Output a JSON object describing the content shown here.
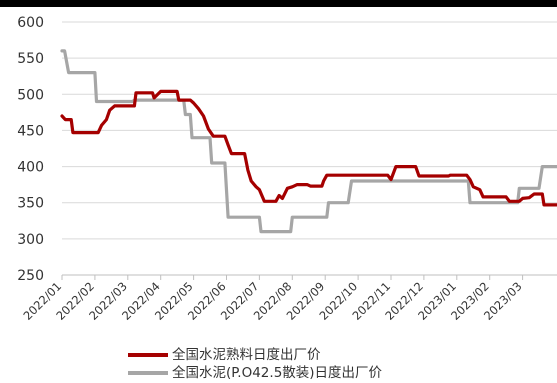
{
  "chart_data": {
    "type": "line",
    "ylim": [
      250,
      600
    ],
    "yticks": [
      250,
      300,
      350,
      400,
      450,
      500,
      550,
      600
    ],
    "x_tick_labels": [
      "2022/01",
      "2022/02",
      "2022/03",
      "2022/04",
      "2022/05",
      "2022/06",
      "2022/07",
      "2022/08",
      "2022/09",
      "2022/10",
      "2022/11",
      "2022/12",
      "2023/01",
      "2023/02",
      "2023/03"
    ],
    "series": [
      {
        "name": "全国水泥熟料日度出厂价",
        "color": "#a50000",
        "points": [
          [
            0.0,
            470
          ],
          [
            0.1,
            465
          ],
          [
            0.28,
            465
          ],
          [
            0.33,
            447
          ],
          [
            1.1,
            447
          ],
          [
            1.2,
            457
          ],
          [
            1.35,
            465
          ],
          [
            1.45,
            478
          ],
          [
            1.6,
            484
          ],
          [
            2.2,
            484
          ],
          [
            2.25,
            502
          ],
          [
            2.75,
            502
          ],
          [
            2.8,
            495
          ],
          [
            3.0,
            504
          ],
          [
            3.5,
            504
          ],
          [
            3.55,
            492
          ],
          [
            3.9,
            492
          ],
          [
            4.0,
            488
          ],
          [
            4.15,
            480
          ],
          [
            4.3,
            470
          ],
          [
            4.45,
            452
          ],
          [
            4.6,
            442
          ],
          [
            4.95,
            442
          ],
          [
            5.05,
            430
          ],
          [
            5.15,
            418
          ],
          [
            5.55,
            418
          ],
          [
            5.65,
            395
          ],
          [
            5.75,
            380
          ],
          [
            5.9,
            372
          ],
          [
            6.0,
            368
          ],
          [
            6.15,
            352
          ],
          [
            6.5,
            352
          ],
          [
            6.6,
            360
          ],
          [
            6.7,
            356
          ],
          [
            6.85,
            370
          ],
          [
            7.0,
            372
          ],
          [
            7.15,
            375
          ],
          [
            7.45,
            375
          ],
          [
            7.55,
            373
          ],
          [
            7.9,
            373
          ],
          [
            7.95,
            380
          ],
          [
            8.05,
            388
          ],
          [
            9.9,
            388
          ],
          [
            10.0,
            382
          ],
          [
            10.15,
            400
          ],
          [
            10.75,
            400
          ],
          [
            10.85,
            387
          ],
          [
            11.75,
            387
          ],
          [
            11.8,
            388
          ],
          [
            12.3,
            388
          ],
          [
            12.4,
            382
          ],
          [
            12.5,
            372
          ],
          [
            12.7,
            368
          ],
          [
            12.8,
            358
          ],
          [
            13.5,
            358
          ],
          [
            13.6,
            352
          ],
          [
            13.9,
            352
          ],
          [
            14.0,
            356
          ],
          [
            14.2,
            357
          ],
          [
            14.35,
            362
          ],
          [
            14.6,
            362
          ],
          [
            14.65,
            347
          ],
          [
            15.2,
            347
          ]
        ]
      },
      {
        "name": "全国水泥(P.O42.5散装)日度出厂价",
        "color": "#a6a6a6",
        "points": [
          [
            0.0,
            560
          ],
          [
            0.08,
            560
          ],
          [
            0.2,
            530
          ],
          [
            1.0,
            530
          ],
          [
            1.05,
            490
          ],
          [
            2.15,
            490
          ],
          [
            2.2,
            492
          ],
          [
            3.7,
            492
          ],
          [
            3.75,
            472
          ],
          [
            3.9,
            472
          ],
          [
            3.95,
            440
          ],
          [
            4.5,
            440
          ],
          [
            4.55,
            405
          ],
          [
            4.95,
            405
          ],
          [
            5.05,
            330
          ],
          [
            6.0,
            330
          ],
          [
            6.05,
            310
          ],
          [
            6.95,
            310
          ],
          [
            7.0,
            330
          ],
          [
            8.05,
            330
          ],
          [
            8.1,
            350
          ],
          [
            8.7,
            350
          ],
          [
            8.8,
            380
          ],
          [
            12.35,
            380
          ],
          [
            12.4,
            350
          ],
          [
            13.85,
            350
          ],
          [
            13.9,
            370
          ],
          [
            14.5,
            370
          ],
          [
            14.6,
            400
          ],
          [
            15.2,
            400
          ]
        ]
      }
    ],
    "grid": "horizontal",
    "legend_position": "bottom"
  }
}
